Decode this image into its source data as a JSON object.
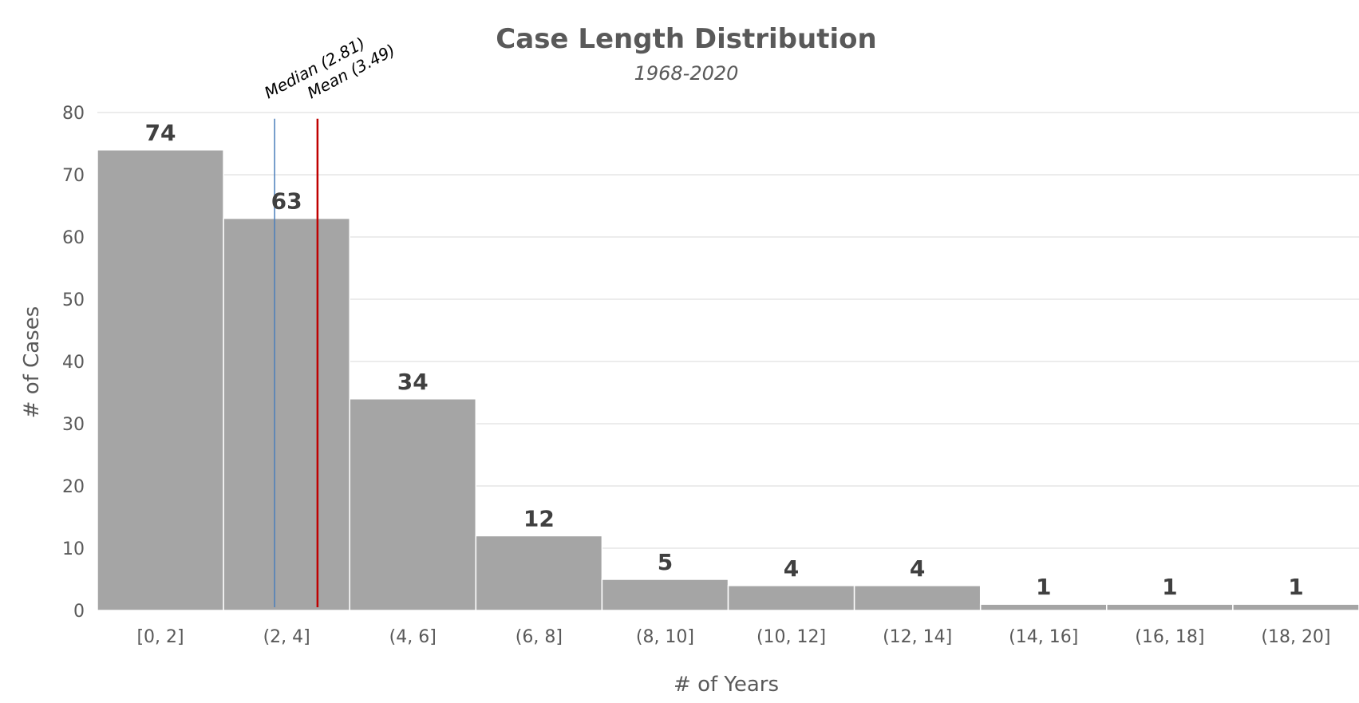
{
  "chart_data": {
    "type": "bar",
    "title": "Case Length Distribution",
    "subtitle": "1968-2020",
    "xlabel": "# of Years",
    "ylabel": "# of Cases",
    "ylim": [
      0,
      80
    ],
    "yticks": [
      0,
      10,
      20,
      30,
      40,
      50,
      60,
      70,
      80
    ],
    "grid": true,
    "categories": [
      "[0, 2]",
      "(2, 4]",
      "(4, 6]",
      "(6, 8]",
      "(8, 10]",
      "(10, 12]",
      "(12, 14]",
      "(14, 16]",
      "(16, 18]",
      "(18, 20]"
    ],
    "values": [
      74,
      63,
      34,
      12,
      5,
      4,
      4,
      1,
      1,
      1
    ],
    "xrange": [
      0,
      20
    ],
    "reference_lines": [
      {
        "label": "Median (2.81)",
        "x": 2.81,
        "color": "#4a7ebb"
      },
      {
        "label": "Mean (3.49)",
        "x": 3.49,
        "color": "#c00000"
      }
    ],
    "colors": {
      "bar": "#a5a5a5",
      "text": "#595959",
      "data_label": "#404040"
    }
  }
}
